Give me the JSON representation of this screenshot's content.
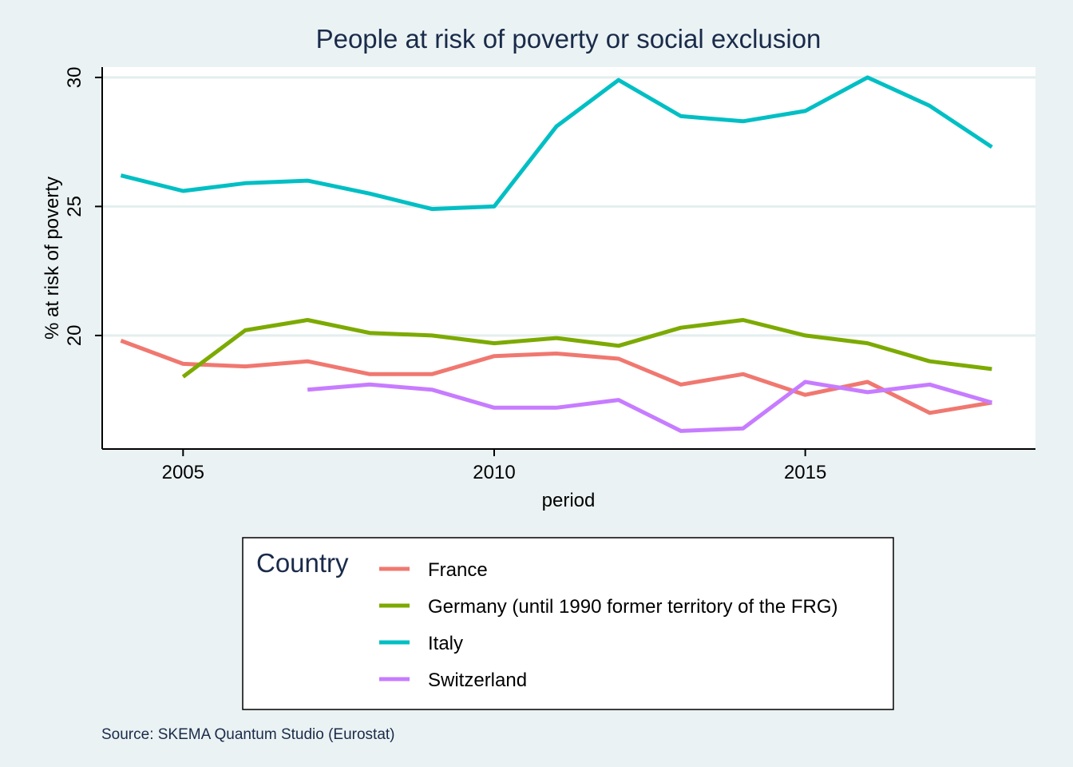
{
  "chart_data": {
    "type": "line",
    "title": "People at risk of poverty or social exclusion",
    "xlabel": "period",
    "ylabel": "% at risk of poverty",
    "caption": "Source: SKEMA Quantum Studio (Eurostat)",
    "xlim": [
      2003.7,
      2018.7
    ],
    "ylim": [
      15.6,
      30.4
    ],
    "xticks": [
      2005,
      2010,
      2015
    ],
    "yticks": [
      20,
      25,
      30
    ],
    "grid": "horizontal",
    "legend": {
      "title": "Country",
      "position": "bottom"
    },
    "series": [
      {
        "name": "France",
        "color": "#f07870",
        "x": [
          2004,
          2005,
          2006,
          2007,
          2008,
          2009,
          2010,
          2011,
          2012,
          2013,
          2014,
          2015,
          2016,
          2017,
          2018
        ],
        "values": [
          19.8,
          18.9,
          18.8,
          19.0,
          18.5,
          18.5,
          19.2,
          19.3,
          19.1,
          18.1,
          18.5,
          17.7,
          18.2,
          17.0,
          17.4
        ]
      },
      {
        "name": "Germany (until 1990 former territory of the FRG)",
        "color": "#7caa00",
        "x": [
          2005,
          2006,
          2007,
          2008,
          2009,
          2010,
          2011,
          2012,
          2013,
          2014,
          2015,
          2016,
          2017,
          2018
        ],
        "values": [
          18.4,
          20.2,
          20.6,
          20.1,
          20.0,
          19.7,
          19.9,
          19.6,
          20.3,
          20.6,
          20.0,
          19.7,
          19.0,
          18.7
        ]
      },
      {
        "name": "Italy",
        "color": "#00bfc4",
        "x": [
          2004,
          2005,
          2006,
          2007,
          2008,
          2009,
          2010,
          2011,
          2012,
          2013,
          2014,
          2015,
          2016,
          2017,
          2018
        ],
        "values": [
          26.2,
          25.6,
          25.9,
          26.0,
          25.5,
          24.9,
          25.0,
          28.1,
          29.9,
          28.5,
          28.3,
          28.7,
          30.0,
          28.9,
          27.3
        ]
      },
      {
        "name": "Switzerland",
        "color": "#c77cff",
        "x": [
          2007,
          2008,
          2009,
          2010,
          2011,
          2012,
          2013,
          2014,
          2015,
          2016,
          2017,
          2018
        ],
        "values": [
          17.9,
          18.1,
          17.9,
          17.2,
          17.2,
          17.5,
          16.3,
          16.4,
          18.2,
          17.8,
          18.1,
          17.4
        ]
      }
    ]
  }
}
